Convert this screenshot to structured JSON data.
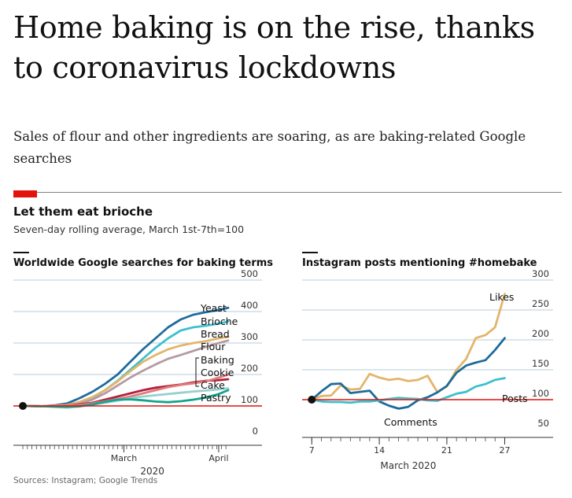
{
  "headline": "Home baking is on the rise, thanks to coronavirus lockdowns",
  "standfirst": "Sales of flour and other ingredients are soaring, as are baking-related Google searches",
  "chart_header": {
    "title": "Let them eat brioche",
    "subtitle": "Seven-day rolling average, March 1st-7th=100"
  },
  "colors": {
    "accent_red": "#e3120b",
    "yeast": "#1f6b9c",
    "brioche": "#3ebfd0",
    "bread": "#e3b56a",
    "flour": "#b59ba3",
    "cookie": "#e07c7c",
    "baking": "#b3203c",
    "cake": "#97d1ce",
    "pastry": "#11a58e",
    "likes": "#e3b56a",
    "comments": "#1f6b9c",
    "posts": "#3ebfd0"
  },
  "source": "Sources: Instagram; Google Trends",
  "chart_data": [
    {
      "type": "line",
      "title": "Worldwide Google searches for baking terms",
      "ylim": [
        0,
        500
      ],
      "yticks": [
        "0",
        "100",
        "200",
        "300",
        "400",
        "500"
      ],
      "baseline": 100,
      "x_ticks": [
        {
          "label": "March",
          "x": 1
        },
        {
          "label": "April",
          "x": 4
        }
      ],
      "x_year_label": "2020",
      "xlim": [
        -2.5,
        4.3
      ],
      "x": [
        -2.2,
        -1.6,
        -1.2,
        -0.8,
        -0.4,
        0,
        0.4,
        0.8,
        1.2,
        1.6,
        2.0,
        2.4,
        2.8,
        3.2,
        3.6,
        4.0,
        4.3
      ],
      "series": [
        {
          "name": "Yeast",
          "color_key": "yeast",
          "values": [
            100,
            99,
            102,
            108,
            125,
            145,
            170,
            200,
            240,
            280,
            315,
            350,
            375,
            390,
            398,
            405,
            412
          ]
        },
        {
          "name": "Brioche",
          "color_key": "brioche",
          "values": [
            100,
            99,
            100,
            103,
            112,
            125,
            150,
            180,
            215,
            250,
            285,
            315,
            340,
            350,
            355,
            362,
            368
          ]
        },
        {
          "name": "Bread",
          "color_key": "bread",
          "values": [
            100,
            99,
            101,
            103,
            113,
            128,
            150,
            178,
            210,
            240,
            262,
            280,
            292,
            300,
            306,
            315,
            320
          ]
        },
        {
          "name": "Flour",
          "color_key": "flour",
          "values": [
            100,
            99,
            100,
            101,
            108,
            120,
            140,
            165,
            190,
            212,
            232,
            250,
            262,
            275,
            288,
            300,
            308
          ]
        },
        {
          "name": "Baking",
          "color_key": "baking",
          "values": [
            100,
            99,
            99,
            101,
            105,
            110,
            120,
            130,
            140,
            150,
            158,
            163,
            168,
            175,
            180,
            182,
            185
          ]
        },
        {
          "name": "Cookie",
          "color_key": "cookie",
          "values": [
            100,
            99,
            100,
            101,
            103,
            108,
            115,
            122,
            130,
            140,
            150,
            160,
            167,
            172,
            178,
            190,
            200
          ]
        },
        {
          "name": "Cake",
          "color_key": "cake",
          "values": [
            100,
            99,
            97,
            95,
            98,
            104,
            110,
            117,
            124,
            130,
            134,
            138,
            142,
            146,
            149,
            153,
            156
          ]
        },
        {
          "name": "Pastry",
          "color_key": "pastry",
          "values": [
            100,
            99,
            98,
            97,
            99,
            105,
            113,
            120,
            121,
            118,
            114,
            112,
            115,
            120,
            127,
            138,
            150
          ]
        }
      ],
      "label_order": [
        "Yeast",
        "Brioche",
        "Bread",
        "Flour",
        "Baking",
        "Cookie",
        "Cake",
        "Pastry"
      ]
    },
    {
      "type": "line",
      "title": "Instagram posts mentioning #homebake",
      "ylim": [
        50,
        300
      ],
      "yticks": [
        "50",
        "100",
        "150",
        "200",
        "250",
        "300"
      ],
      "baseline": 100,
      "x_ticks": [
        {
          "label": "7",
          "x": 7
        },
        {
          "label": "14",
          "x": 14
        },
        {
          "label": "21",
          "x": 21
        },
        {
          "label": "27",
          "x": 27
        }
      ],
      "x_axis_label": "March 2020",
      "xlim": [
        6,
        29
      ],
      "x": [
        7,
        8,
        9,
        10,
        11,
        12,
        13,
        14,
        15,
        16,
        17,
        18,
        19,
        20,
        21,
        22,
        23,
        24,
        25,
        26,
        27
      ],
      "series": [
        {
          "name": "Likes",
          "color_key": "likes",
          "values": [
            100,
            106,
            107,
            124,
            117,
            118,
            143,
            137,
            133,
            135,
            131,
            133,
            140,
            113,
            122,
            150,
            168,
            203,
            208,
            221,
            277
          ]
        },
        {
          "name": "Comments",
          "color_key": "comments",
          "values": [
            100,
            114,
            126,
            127,
            111,
            113,
            115,
            97,
            90,
            85,
            88,
            99,
            104,
            112,
            123,
            145,
            157,
            162,
            166,
            183,
            203
          ]
        },
        {
          "name": "Posts",
          "color_key": "posts",
          "values": [
            100,
            97,
            96,
            96,
            95,
            97,
            97,
            99,
            101,
            103,
            102,
            101,
            99,
            98,
            104,
            110,
            113,
            122,
            126,
            133,
            136
          ]
        }
      ],
      "label_order": [
        "Likes",
        "Comments",
        "Posts"
      ]
    }
  ]
}
